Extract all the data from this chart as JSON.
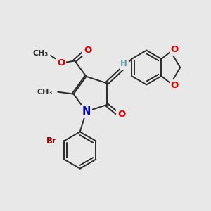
{
  "bg_color": "#e8e8e8",
  "bond_color": "#2a2a2a",
  "bond_width": 1.4,
  "dbo": 0.07,
  "atom_colors": {
    "O": "#dd0000",
    "N": "#0000cc",
    "Br": "#8b0000",
    "H": "#5f9ea0",
    "C": "#2a2a2a"
  },
  "fs": 8.5
}
